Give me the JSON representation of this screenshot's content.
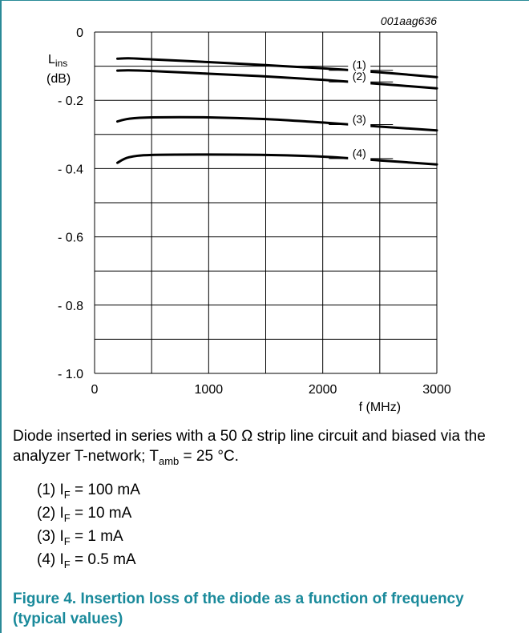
{
  "figure_id": "001aag636",
  "caption": {
    "text_before": "Diode inserted in series with a 50 Ω strip line circuit and biased via the analyzer T-network; T",
    "sub": "amb",
    "text_after": " = 25 °C."
  },
  "conditions": [
    {
      "tag": "(1) I",
      "sub": "F",
      "value": " = 100 mA"
    },
    {
      "tag": "(2) I",
      "sub": "F",
      "value": " = 10 mA"
    },
    {
      "tag": "(3) I",
      "sub": "F",
      "value": " = 1 mA"
    },
    {
      "tag": "(4) I",
      "sub": "F",
      "value": " = 0.5 mA"
    }
  ],
  "figure_title": "Figure 4.  Insertion loss of the diode as a function of frequency (typical values)",
  "colors": {
    "frame": "#2a8a97",
    "title": "#1a8a9b",
    "curve": "#000000",
    "grid": "#000000"
  },
  "chart_data": {
    "type": "line",
    "ylabel_main": "L",
    "ylabel_sub": "ins",
    "ylabel_unit": "(dB)",
    "xlabel": "f (MHz)",
    "xlim": [
      0,
      3000
    ],
    "ylim": [
      -1.0,
      0
    ],
    "x_ticks": [
      0,
      1000,
      2000,
      3000
    ],
    "x_tick_labels": [
      "0",
      "1000",
      "2000",
      "3000"
    ],
    "y_ticks": [
      0,
      -0.2,
      -0.4,
      -0.6,
      -0.8,
      -1.0
    ],
    "y_tick_labels": [
      "0",
      "- 0.2",
      "- 0.4",
      "- 0.6",
      "- 0.8",
      "- 1.0"
    ],
    "grid": true,
    "series": [
      {
        "name": "(1)",
        "x": [
          200,
          300,
          500,
          1000,
          1500,
          2000,
          2500,
          3000
        ],
        "y": [
          -0.078,
          -0.077,
          -0.08,
          -0.088,
          -0.097,
          -0.106,
          -0.118,
          -0.132
        ]
      },
      {
        "name": "(2)",
        "x": [
          200,
          300,
          500,
          1000,
          1500,
          2000,
          2500,
          3000
        ],
        "y": [
          -0.113,
          -0.112,
          -0.114,
          -0.122,
          -0.13,
          -0.14,
          -0.152,
          -0.165
        ]
      },
      {
        "name": "(3)",
        "x": [
          200,
          300,
          500,
          1000,
          1500,
          2000,
          2500,
          3000
        ],
        "y": [
          -0.262,
          -0.254,
          -0.25,
          -0.25,
          -0.255,
          -0.265,
          -0.277,
          -0.288
        ]
      },
      {
        "name": "(4)",
        "x": [
          200,
          300,
          500,
          1000,
          1500,
          2000,
          2500,
          3000
        ],
        "y": [
          -0.383,
          -0.367,
          -0.36,
          -0.359,
          -0.36,
          -0.365,
          -0.376,
          -0.388
        ]
      }
    ]
  }
}
